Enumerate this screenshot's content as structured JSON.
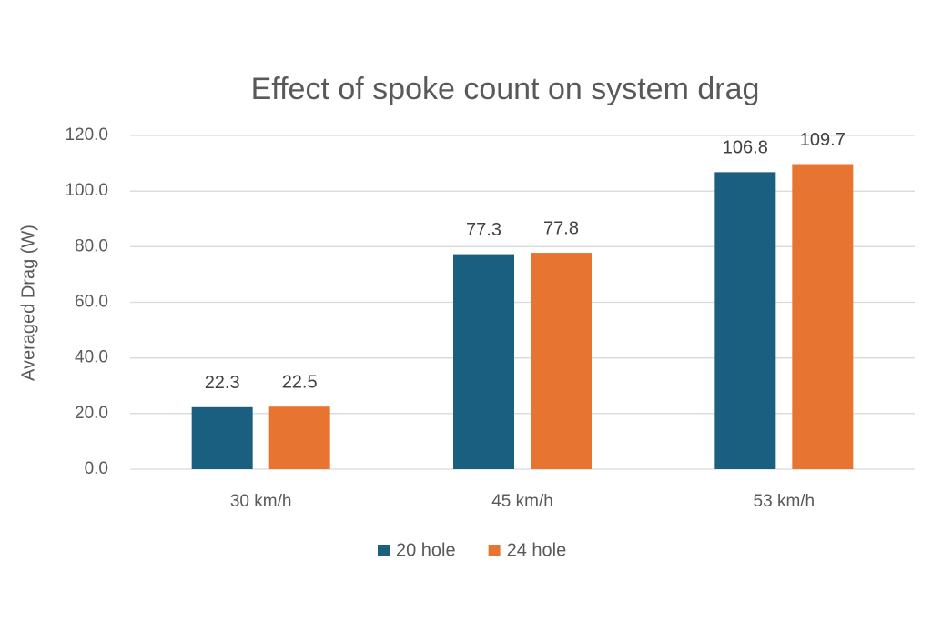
{
  "chart_data": {
    "type": "bar",
    "title": "Effect of spoke count on system drag",
    "y_label": "Averaged Drag (W)",
    "categories": [
      "30 km/h",
      "45 km/h",
      "53 km/h"
    ],
    "series": [
      {
        "name": "20 hole",
        "color": "#1a5e80",
        "values": [
          22.3,
          77.3,
          106.8
        ]
      },
      {
        "name": "24 hole",
        "color": "#e87432",
        "values": [
          22.5,
          77.8,
          109.7
        ]
      }
    ],
    "ylim": [
      0,
      120
    ],
    "yticks": [
      {
        "value": 0,
        "label": "0.0"
      },
      {
        "value": 20,
        "label": "20.0"
      },
      {
        "value": 40,
        "label": "40.0"
      },
      {
        "value": 60,
        "label": "60.0"
      },
      {
        "value": 80,
        "label": "80.0"
      },
      {
        "value": 100,
        "label": "100.0"
      },
      {
        "value": 120,
        "label": "120.0"
      }
    ],
    "grid": true,
    "legend": "bottom"
  }
}
